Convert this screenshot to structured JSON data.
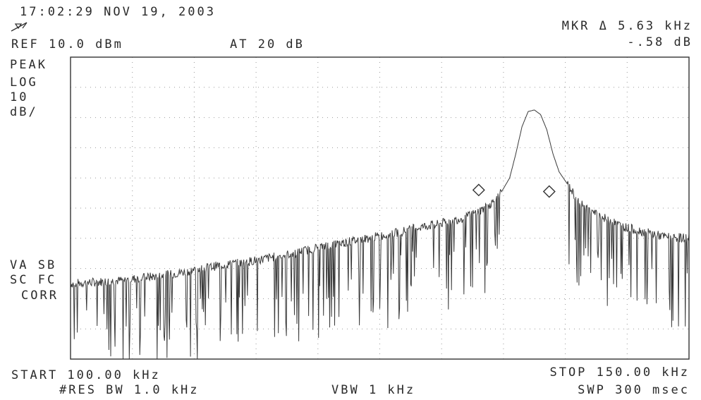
{
  "header": {
    "timestamp": "17:02:29 NOV 19, 2003",
    "ref_level": "REF 10.0 dBm",
    "attenuation": "AT 20 dB",
    "marker_label": "MKR Δ 5.63 kHz",
    "marker_value": "-.58 dB"
  },
  "left_annotations": {
    "detector": "PEAK",
    "scale_mode": "LOG",
    "scale_value": "10",
    "scale_unit": "dB/",
    "va_sb": "VA SB",
    "sc_fc": "SC FC",
    "corr": "CORR"
  },
  "footer": {
    "start": "START 100.00 kHz",
    "stop": "STOP 150.00 kHz",
    "res_bw": "#RES BW 1.0 kHz",
    "vbw": "VBW 1 kHz",
    "sweep": "SWP 300 msec"
  },
  "icons": {
    "marker_symbol": "delta-marker-icon"
  },
  "colors": {
    "trace": "#3a3a3a",
    "grid": "#9a9a9a",
    "background": "#ffffff"
  },
  "chart_data": {
    "type": "line",
    "title": "",
    "xlabel": "",
    "ylabel": "",
    "x_unit": "kHz",
    "y_unit": "dBm",
    "xlim": [
      100.0,
      150.0
    ],
    "ylim": [
      -90.0,
      10.0
    ],
    "grid": true,
    "grid_divisions": {
      "x": 10,
      "y": 10
    },
    "scale_db_per_div": 10,
    "series": [
      {
        "points": [
          [
            100.0,
            -65.0
          ],
          [
            102.0,
            -64.5
          ],
          [
            104.0,
            -64.0
          ],
          [
            106.0,
            -63.0
          ],
          [
            108.0,
            -62.0
          ],
          [
            110.0,
            -60.5
          ],
          [
            112.0,
            -59.0
          ],
          [
            114.0,
            -58.0
          ],
          [
            116.0,
            -56.5
          ],
          [
            118.0,
            -55.0
          ],
          [
            120.0,
            -53.0
          ],
          [
            122.0,
            -51.5
          ],
          [
            124.0,
            -50.0
          ],
          [
            126.0,
            -48.5
          ],
          [
            128.0,
            -46.5
          ],
          [
            130.0,
            -45.0
          ],
          [
            132.0,
            -43.0
          ],
          [
            133.5,
            -40.0
          ],
          [
            134.5,
            -37.0
          ],
          [
            135.5,
            -30.0
          ],
          [
            136.0,
            -22.0
          ],
          [
            136.5,
            -13.0
          ],
          [
            137.0,
            -8.0
          ],
          [
            137.5,
            -7.5
          ],
          [
            138.0,
            -9.0
          ],
          [
            138.5,
            -14.0
          ],
          [
            139.0,
            -22.0
          ],
          [
            139.5,
            -28.0
          ],
          [
            140.0,
            -31.0
          ],
          [
            140.5,
            -34.0
          ],
          [
            141.0,
            -38.0
          ],
          [
            142.0,
            -41.0
          ],
          [
            143.0,
            -43.0
          ],
          [
            144.0,
            -45.0
          ],
          [
            145.0,
            -46.5
          ],
          [
            146.0,
            -47.5
          ],
          [
            147.0,
            -48.5
          ],
          [
            148.0,
            -49.5
          ],
          [
            150.0,
            -50.0
          ]
        ]
      }
    ],
    "markers": [
      {
        "x": 133.0,
        "y": -34.0
      },
      {
        "x": 138.7,
        "y": -34.5
      }
    ]
  }
}
